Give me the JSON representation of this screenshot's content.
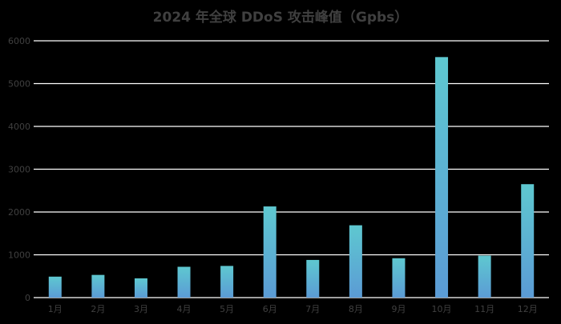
{
  "chart_data": {
    "type": "bar",
    "title": "2024 年全球 DDoS 攻击峰值（Gpbs）",
    "xlabel": "",
    "ylabel": "",
    "categories": [
      "1月",
      "2月",
      "3月",
      "4月",
      "5月",
      "6月",
      "7月",
      "8月",
      "9月",
      "10月",
      "11月",
      "12月"
    ],
    "values": [
      490,
      530,
      450,
      720,
      740,
      2130,
      880,
      1690,
      920,
      5620,
      980,
      2650
    ],
    "ylim": [
      0,
      6000
    ],
    "yticks": [
      0,
      1000,
      2000,
      3000,
      4000,
      5000,
      6000
    ],
    "grid": true,
    "legend": "none",
    "colors": {
      "background": "#000000",
      "bar_top": "#5ec8d0",
      "bar_bottom": "#5b9bd5",
      "grid": "#ffffff",
      "text": "#404040"
    }
  }
}
